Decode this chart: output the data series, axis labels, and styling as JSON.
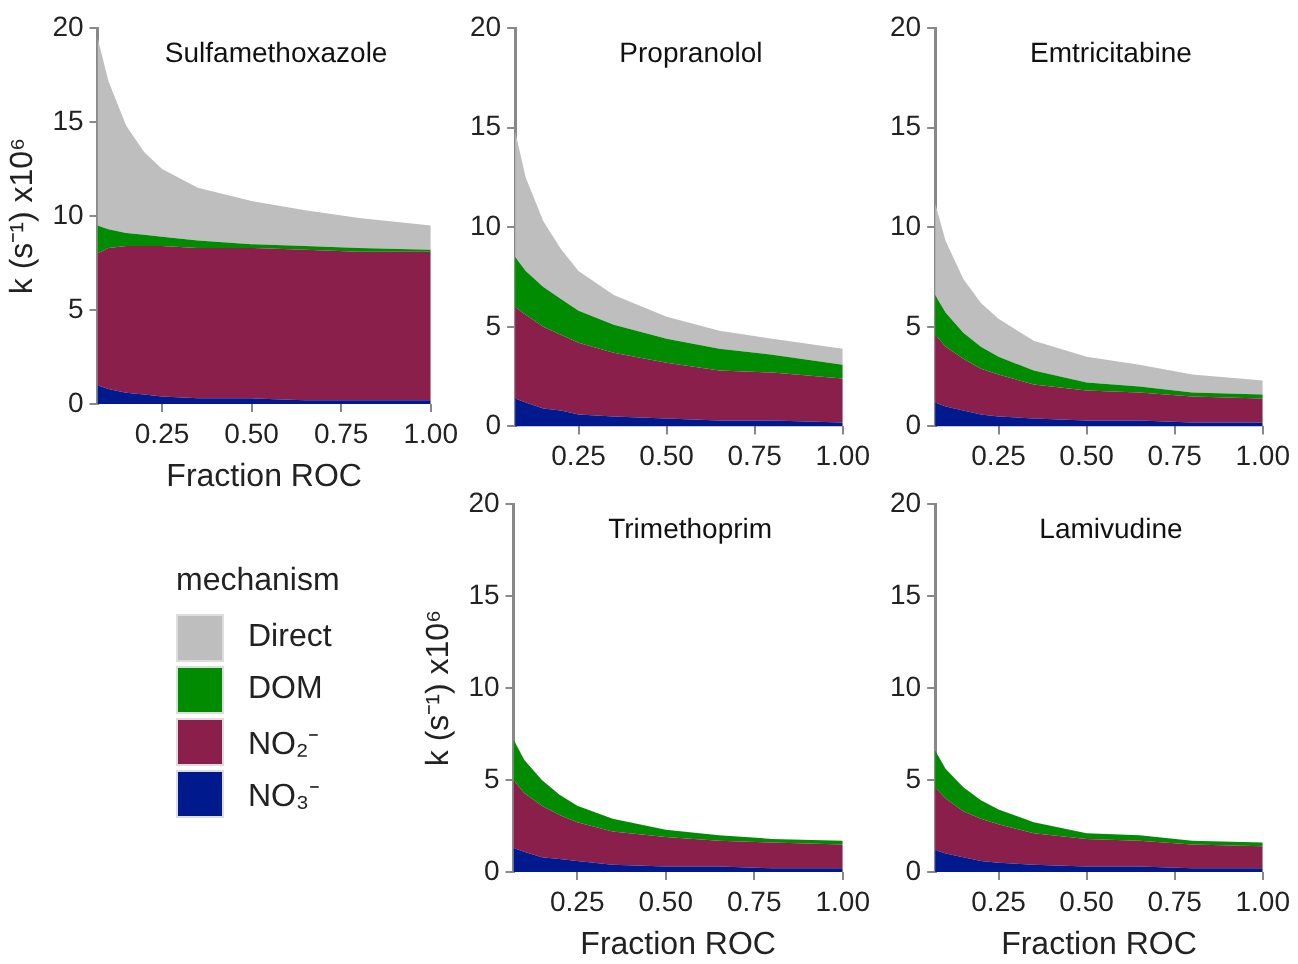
{
  "chart_data": [
    {
      "type": "area",
      "title": "Sulfamethoxazole",
      "xlabel": "Fraction ROC",
      "ylabel": "k (s⁻¹) x10⁶",
      "stacked": true,
      "legend": "bottom",
      "legend_title": "mechanism",
      "grid": false,
      "x": [
        0.07,
        0.1,
        0.15,
        0.2,
        0.25,
        0.35,
        0.5,
        0.65,
        0.8,
        1.0
      ],
      "xlim": [
        0.07,
        1.0
      ],
      "xticks": [
        {
          "value": 0.25,
          "label": "0.25"
        },
        {
          "value": 0.5,
          "label": "0.50"
        },
        {
          "value": 0.75,
          "label": "0.75"
        },
        {
          "value": 1.0,
          "label": "1.00"
        }
      ],
      "ylim": [
        0,
        20
      ],
      "yticks": [
        0,
        5,
        10,
        15,
        20
      ],
      "series": [
        {
          "name": "NO₃⁻",
          "color": "#00198c",
          "values": [
            1.0,
            0.8,
            0.6,
            0.5,
            0.4,
            0.3,
            0.3,
            0.2,
            0.2,
            0.2
          ]
        },
        {
          "name": "NO₂⁻",
          "color": "#8b1f4b",
          "values": [
            7.0,
            7.5,
            7.8,
            7.9,
            8.0,
            8.0,
            8.0,
            8.0,
            7.9,
            7.9
          ]
        },
        {
          "name": "DOM",
          "color": "#008b00",
          "values": [
            1.5,
            1.0,
            0.7,
            0.6,
            0.5,
            0.4,
            0.2,
            0.2,
            0.2,
            0.1
          ]
        },
        {
          "name": "Direct",
          "color": "#bebebe",
          "values": [
            10.0,
            7.9,
            5.7,
            4.4,
            3.6,
            2.8,
            2.3,
            1.9,
            1.6,
            1.3
          ]
        }
      ]
    },
    {
      "type": "area",
      "title": "Propranolol",
      "stacked": true,
      "grid": false,
      "x": [
        0.07,
        0.1,
        0.15,
        0.2,
        0.25,
        0.35,
        0.5,
        0.65,
        0.8,
        1.0
      ],
      "xlim": [
        0.07,
        1.0
      ],
      "xticks": [
        {
          "value": 0.25,
          "label": "0.25"
        },
        {
          "value": 0.5,
          "label": "0.50"
        },
        {
          "value": 0.75,
          "label": "0.75"
        },
        {
          "value": 1.0,
          "label": "1.00"
        }
      ],
      "ylim": [
        0,
        20
      ],
      "yticks": [
        0,
        5,
        10,
        15,
        20
      ],
      "series": [
        {
          "color": "#00198c",
          "values": [
            1.4,
            1.2,
            0.9,
            0.8,
            0.6,
            0.5,
            0.4,
            0.3,
            0.3,
            0.2
          ]
        },
        {
          "color": "#8b1f4b",
          "values": [
            4.6,
            4.4,
            4.1,
            3.8,
            3.6,
            3.2,
            2.8,
            2.5,
            2.4,
            2.2
          ]
        },
        {
          "color": "#008b00",
          "values": [
            2.5,
            2.2,
            2.0,
            1.8,
            1.6,
            1.4,
            1.2,
            1.1,
            0.9,
            0.7
          ]
        },
        {
          "color": "#bebebe",
          "values": [
            6.3,
            4.7,
            3.3,
            2.5,
            2.0,
            1.5,
            1.1,
            0.9,
            0.8,
            0.8
          ]
        }
      ]
    },
    {
      "type": "area",
      "title": "Emtricitabine",
      "stacked": true,
      "grid": false,
      "x": [
        0.07,
        0.1,
        0.15,
        0.2,
        0.25,
        0.35,
        0.5,
        0.65,
        0.8,
        1.0
      ],
      "xlim": [
        0.07,
        1.0
      ],
      "xticks": [
        {
          "value": 0.25,
          "label": "0.25"
        },
        {
          "value": 0.5,
          "label": "0.50"
        },
        {
          "value": 0.75,
          "label": "0.75"
        },
        {
          "value": 1.0,
          "label": "1.00"
        }
      ],
      "ylim": [
        0,
        20
      ],
      "yticks": [
        0,
        5,
        10,
        15,
        20
      ],
      "series": [
        {
          "color": "#00198c",
          "values": [
            1.2,
            1.0,
            0.8,
            0.6,
            0.5,
            0.4,
            0.3,
            0.3,
            0.2,
            0.2
          ]
        },
        {
          "color": "#8b1f4b",
          "values": [
            3.4,
            3.0,
            2.6,
            2.3,
            2.1,
            1.7,
            1.5,
            1.4,
            1.3,
            1.2
          ]
        },
        {
          "color": "#008b00",
          "values": [
            2.0,
            1.7,
            1.3,
            1.1,
            0.9,
            0.7,
            0.4,
            0.3,
            0.2,
            0.2
          ]
        },
        {
          "color": "#bebebe",
          "values": [
            4.6,
            3.6,
            2.7,
            2.2,
            1.9,
            1.5,
            1.3,
            1.1,
            0.9,
            0.7
          ]
        }
      ]
    },
    {
      "type": "area",
      "title": "Trimethoprim",
      "xlabel": "Fraction ROC",
      "ylabel": "k (s⁻¹) x10⁶",
      "stacked": true,
      "grid": false,
      "x": [
        0.07,
        0.1,
        0.15,
        0.2,
        0.25,
        0.35,
        0.5,
        0.65,
        0.8,
        1.0
      ],
      "xlim": [
        0.07,
        1.0
      ],
      "xticks": [
        {
          "value": 0.25,
          "label": "0.25"
        },
        {
          "value": 0.5,
          "label": "0.50"
        },
        {
          "value": 0.75,
          "label": "0.75"
        },
        {
          "value": 1.0,
          "label": "1.00"
        }
      ],
      "ylim": [
        0,
        20
      ],
      "yticks": [
        0,
        5,
        10,
        15,
        20
      ],
      "series": [
        {
          "color": "#00198c",
          "values": [
            1.3,
            1.1,
            0.8,
            0.7,
            0.6,
            0.4,
            0.3,
            0.3,
            0.2,
            0.2
          ]
        },
        {
          "color": "#8b1f4b",
          "values": [
            3.7,
            3.2,
            2.8,
            2.4,
            2.1,
            1.8,
            1.6,
            1.4,
            1.4,
            1.3
          ]
        },
        {
          "color": "#008b00",
          "values": [
            2.2,
            1.8,
            1.4,
            1.1,
            0.9,
            0.7,
            0.4,
            0.3,
            0.2,
            0.2
          ]
        }
      ]
    },
    {
      "type": "area",
      "title": "Lamivudine",
      "xlabel": "Fraction ROC",
      "stacked": true,
      "grid": false,
      "x": [
        0.07,
        0.1,
        0.15,
        0.2,
        0.25,
        0.35,
        0.5,
        0.65,
        0.8,
        1.0
      ],
      "xlim": [
        0.07,
        1.0
      ],
      "xticks": [
        {
          "value": 0.25,
          "label": "0.25"
        },
        {
          "value": 0.5,
          "label": "0.50"
        },
        {
          "value": 0.75,
          "label": "0.75"
        },
        {
          "value": 1.0,
          "label": "1.00"
        }
      ],
      "ylim": [
        0,
        20
      ],
      "yticks": [
        0,
        5,
        10,
        15,
        20
      ],
      "series": [
        {
          "color": "#00198c",
          "values": [
            1.2,
            1.0,
            0.8,
            0.6,
            0.5,
            0.4,
            0.3,
            0.3,
            0.2,
            0.2
          ]
        },
        {
          "color": "#8b1f4b",
          "values": [
            3.4,
            3.0,
            2.5,
            2.3,
            2.1,
            1.7,
            1.5,
            1.4,
            1.3,
            1.2
          ]
        },
        {
          "color": "#008b00",
          "values": [
            2.0,
            1.6,
            1.3,
            1.0,
            0.8,
            0.6,
            0.3,
            0.3,
            0.2,
            0.2
          ]
        }
      ]
    }
  ]
}
